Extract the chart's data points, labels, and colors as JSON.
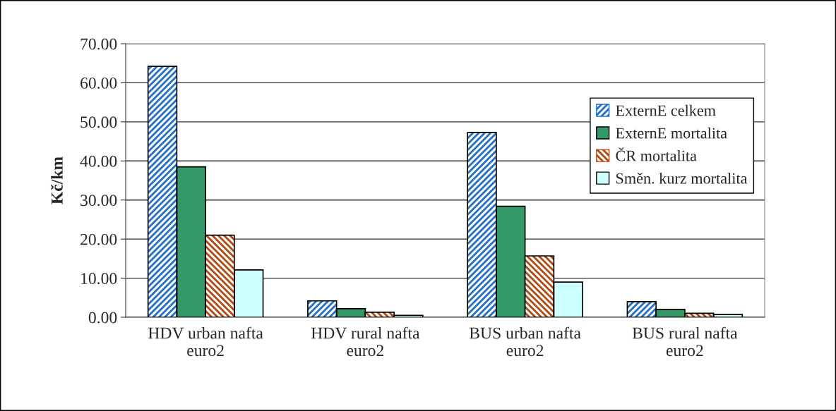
{
  "chart_data": {
    "type": "bar",
    "ylabel": "Kč/km",
    "categories": [
      "HDV urban nafta\neuro2",
      "HDV rural nafta\neuro2",
      "BUS urban nafta\neuro2",
      "BUS rural nafta\neuro2"
    ],
    "series": [
      {
        "name": "ExternE celkem",
        "color": "#1f6fd0",
        "values": [
          64.2,
          4.2,
          47.3,
          4.0
        ]
      },
      {
        "name": "ExternE mortalita",
        "color": "#339966",
        "values": [
          38.5,
          2.2,
          28.4,
          2.0
        ]
      },
      {
        "name": "ČR mortalita",
        "color": "#b5470f",
        "values": [
          21.0,
          1.3,
          15.7,
          1.0
        ]
      },
      {
        "name": "Směn. kurz mortalita",
        "color": "#ccffff",
        "values": [
          12.1,
          0.5,
          9.0,
          0.7
        ]
      }
    ],
    "ylim": [
      0,
      70
    ],
    "yticks": [
      {
        "value": 0,
        "label": "0.00"
      },
      {
        "value": 10,
        "label": "10.00"
      },
      {
        "value": 20,
        "label": "20.00"
      },
      {
        "value": 30,
        "label": "30.00"
      },
      {
        "value": 40,
        "label": "40.00"
      },
      {
        "value": 50,
        "label": "50.00"
      },
      {
        "value": 60,
        "label": "60.00"
      },
      {
        "value": 70,
        "label": "70.00"
      }
    ],
    "grid": "y",
    "legend": "top right"
  }
}
